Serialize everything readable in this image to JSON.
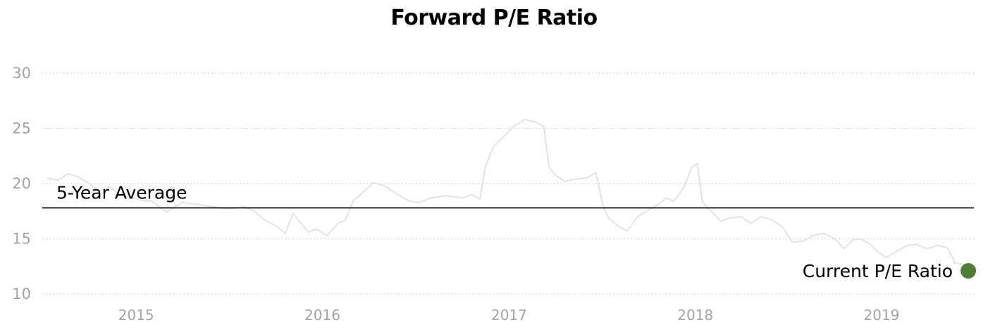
{
  "chart_data": {
    "type": "line",
    "title": "Forward P/E Ratio",
    "xlabel": "",
    "ylabel": "",
    "x_range": [
      "2014-07-01",
      "2019-07-01"
    ],
    "ylim": [
      10,
      30
    ],
    "y_ticks": [
      10,
      15,
      20,
      25,
      30
    ],
    "x_ticks": [
      {
        "label": "2015",
        "date": "2015-01-01"
      },
      {
        "label": "2016",
        "date": "2016-01-01"
      },
      {
        "label": "2017",
        "date": "2017-01-01"
      },
      {
        "label": "2018",
        "date": "2018-01-01"
      },
      {
        "label": "2019",
        "date": "2019-01-01"
      }
    ],
    "grid": "horizontal dotted",
    "colors": {
      "series": "#e3e3e3",
      "average": "#000000",
      "current": "#4e7e35",
      "grid": "#cfcfcf",
      "ticks": "#a3a3a3"
    },
    "series": [
      {
        "x": [
          "2014-07-10",
          "2014-08-01",
          "2014-08-20",
          "2014-09-10",
          "2014-10-01",
          "2014-10-20",
          "2014-11-10",
          "2014-12-01",
          "2014-12-20",
          "2015-01-10",
          "2015-02-01",
          "2015-03-01",
          "2015-04-01",
          "2015-05-01",
          "2015-06-01",
          "2015-07-01",
          "2015-08-01",
          "2015-08-20",
          "2015-09-10",
          "2015-10-01",
          "2015-10-20",
          "2015-11-05",
          "2015-11-20",
          "2015-12-05",
          "2015-12-20",
          "2016-01-10",
          "2016-02-01",
          "2016-02-15",
          "2016-03-01",
          "2016-03-20",
          "2016-04-10",
          "2016-05-01",
          "2016-06-01",
          "2016-06-20",
          "2016-07-10",
          "2016-08-01",
          "2016-09-01",
          "2016-10-01",
          "2016-10-20",
          "2016-11-05",
          "2016-11-15",
          "2016-12-01",
          "2016-12-20",
          "2017-01-10",
          "2017-02-01",
          "2017-02-20",
          "2017-03-10",
          "2017-03-20",
          "2017-04-01",
          "2017-04-20",
          "2017-05-10",
          "2017-06-01",
          "2017-06-20",
          "2017-07-05",
          "2017-07-15",
          "2017-08-01",
          "2017-08-20",
          "2017-09-10",
          "2017-10-01",
          "2017-10-20",
          "2017-11-05",
          "2017-11-20",
          "2017-12-10",
          "2017-12-25",
          "2018-01-05",
          "2018-01-15",
          "2018-02-01",
          "2018-02-20",
          "2018-03-10",
          "2018-04-01",
          "2018-04-20",
          "2018-05-10",
          "2018-06-01",
          "2018-06-20",
          "2018-07-10",
          "2018-08-01",
          "2018-08-20",
          "2018-09-10",
          "2018-10-01",
          "2018-10-20",
          "2018-11-05",
          "2018-11-20",
          "2018-12-10",
          "2018-12-25",
          "2019-01-10",
          "2019-02-01",
          "2019-02-20",
          "2019-03-10",
          "2019-04-01",
          "2019-04-20",
          "2019-05-10",
          "2019-05-25",
          "2019-06-10"
        ],
        "values": [
          20.5,
          20.3,
          20.9,
          20.6,
          20.0,
          19.3,
          19.7,
          18.9,
          18.8,
          18.5,
          18.4,
          17.4,
          18.3,
          18.1,
          17.9,
          17.7,
          17.9,
          17.5,
          16.7,
          16.2,
          15.5,
          17.3,
          16.4,
          15.6,
          15.9,
          15.3,
          16.4,
          16.7,
          18.4,
          19.2,
          20.1,
          19.8,
          18.9,
          18.4,
          18.3,
          18.7,
          18.9,
          18.7,
          19.0,
          18.6,
          21.5,
          23.3,
          24.2,
          25.2,
          25.8,
          25.6,
          25.2,
          21.5,
          20.8,
          20.2,
          20.4,
          20.5,
          21.0,
          17.8,
          16.9,
          16.2,
          15.7,
          17.0,
          17.6,
          18.1,
          18.7,
          18.4,
          19.7,
          21.5,
          21.8,
          18.3,
          17.5,
          16.6,
          16.9,
          17.0,
          16.4,
          17.0,
          16.7,
          16.1,
          14.7,
          14.8,
          15.3,
          15.5,
          15.0,
          14.1,
          14.9,
          15.0,
          14.5,
          13.8,
          13.3,
          13.9,
          14.4,
          14.5,
          14.1,
          14.4,
          14.2,
          12.8,
          12.7
        ]
      }
    ],
    "average": {
      "label": "5-Year Average",
      "value": 17.8
    },
    "current": {
      "label": "Current P/E Ratio",
      "value": 12.1,
      "date": "2019-06-20"
    }
  }
}
